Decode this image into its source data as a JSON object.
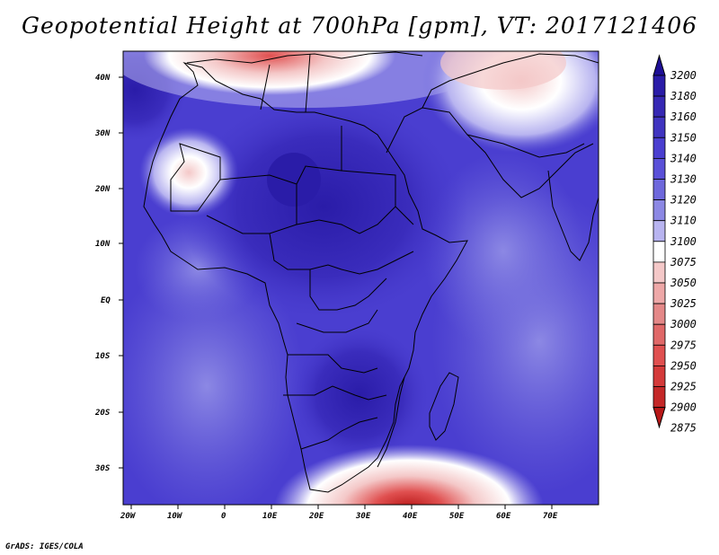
{
  "title": "Geopotential Height at 700hPa [gpm], VT: 2017121406",
  "credit": "GrADS: IGES/COLA",
  "map": {
    "lat_labels": [
      "40N",
      "30N",
      "20N",
      "10N",
      "EQ",
      "10S",
      "20S",
      "30S"
    ],
    "lon_labels": [
      "20W",
      "10W",
      "0",
      "10E",
      "20E",
      "30E",
      "40E",
      "50E",
      "60E",
      "70E"
    ],
    "colors": {
      "deep_blue": "#2a1ca8",
      "mid_blue": "#4a3ed0",
      "light_blue": "#6e68dc",
      "pale_blue": "#b8b4f0",
      "white": "#ffffff",
      "pale_red": "#f4c8c8",
      "red": "#e05050",
      "dark_red": "#b81818",
      "coastline": "#000000"
    }
  },
  "colorbar": {
    "labels": [
      "3200",
      "3180",
      "3160",
      "3150",
      "3140",
      "3130",
      "3120",
      "3110",
      "3100",
      "3075",
      "3050",
      "3025",
      "3000",
      "2975",
      "2950",
      "2925",
      "2900",
      "2875"
    ],
    "colors": [
      "#1e0f96",
      "#2a1ca8",
      "#3628b4",
      "#4034c0",
      "#4a3ed0",
      "#5a50d8",
      "#6e68dc",
      "#8c88e4",
      "#b8b4f0",
      "#ffffff",
      "#f4c8c8",
      "#eea8a8",
      "#e48888",
      "#e06868",
      "#e05050",
      "#d43a3a",
      "#c42828",
      "#b81818"
    ]
  }
}
